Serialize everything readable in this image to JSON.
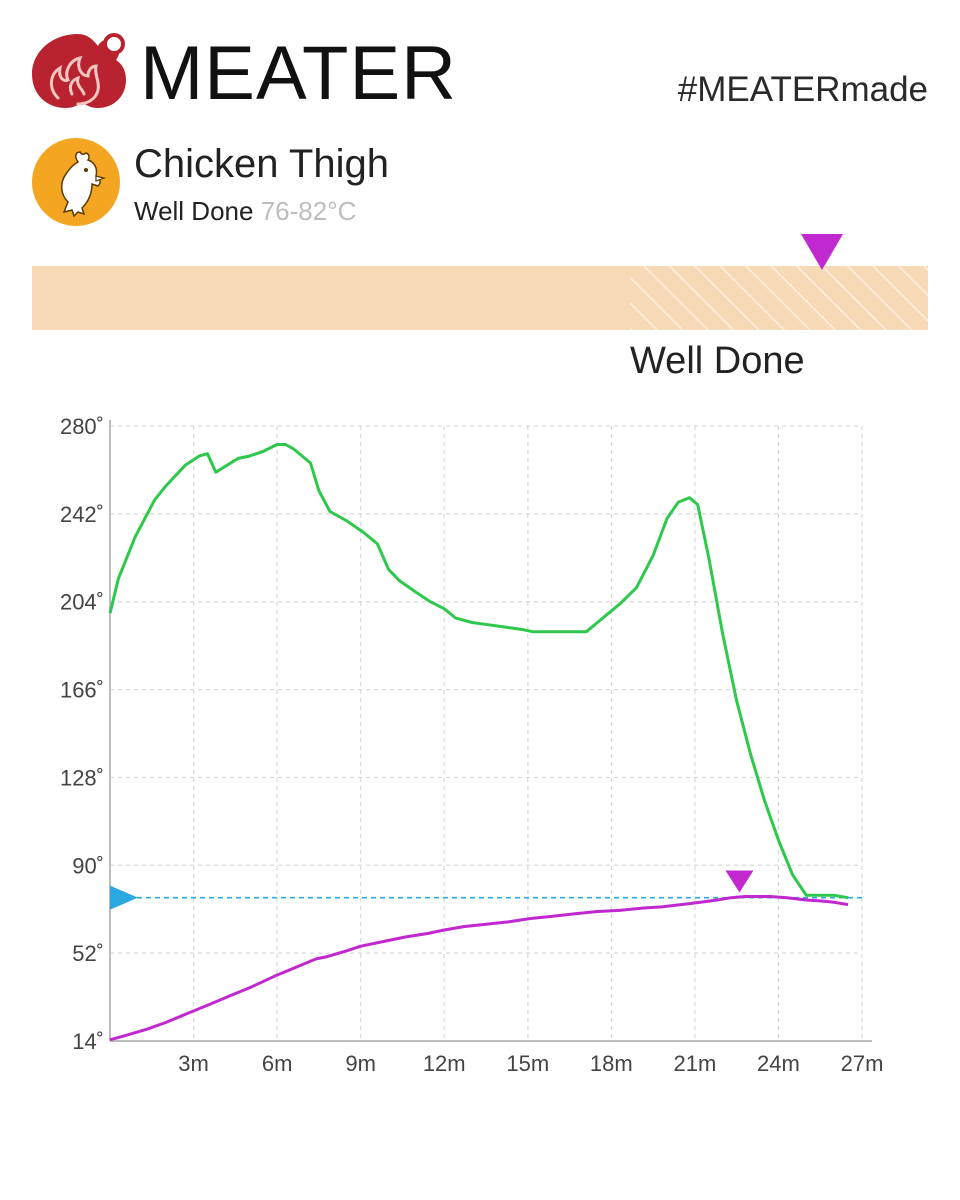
{
  "brand": {
    "name": "MEATER",
    "hashtag": "#MEATERmade",
    "color": "#b8232f"
  },
  "cook": {
    "cut": "Chicken Thigh",
    "doneness": "Well Done",
    "range": "76-82°C",
    "icon": "chicken-icon",
    "icon_color": "#f4a623"
  },
  "progress_bar": {
    "label": "Well Done",
    "colors": {
      "fill": "#f8d9b5",
      "hatch": "#fbe7cf"
    },
    "target_marker_color": "#c228d0"
  },
  "chart_data": {
    "type": "line",
    "x_unit": "minutes",
    "xlim": [
      0,
      27
    ],
    "ylim": [
      14,
      280
    ],
    "x_ticks": [
      "3m",
      "6m",
      "9m",
      "12m",
      "15m",
      "18m",
      "21m",
      "24m",
      "27m"
    ],
    "y_ticks": [
      "14˚",
      "52˚",
      "90˚",
      "128˚",
      "166˚",
      "204˚",
      "242˚",
      "280˚"
    ],
    "grid": true,
    "series": [
      {
        "role": "ambient",
        "color": "#2ec84c",
        "x": [
          0,
          0.3,
          0.9,
          1.6,
          2.0,
          2.7,
          3.2,
          3.5,
          3.8,
          4.2,
          4.6,
          5.0,
          5.5,
          6.0,
          6.3,
          6.6,
          7.2,
          7.5,
          7.9,
          8.5,
          9.1,
          9.6,
          10.0,
          10.4,
          11.0,
          11.5,
          12.0,
          12.4,
          13.0,
          13.6,
          14.2,
          14.8,
          15.2,
          15.6,
          16.0,
          16.6,
          17.1,
          17.5,
          17.9,
          18.3,
          18.9,
          19.5,
          20.0,
          20.4,
          20.8,
          21.1,
          21.5,
          22.0,
          22.5,
          23.0,
          23.5,
          24.0,
          24.5,
          25.0,
          25.5,
          26.0,
          26.5
        ],
        "y": [
          199,
          214,
          232,
          248,
          254,
          263,
          267,
          268,
          260,
          263,
          266,
          267,
          269,
          272,
          272,
          270,
          264,
          252,
          243,
          239,
          234,
          229,
          218,
          213,
          208,
          204,
          201,
          197,
          195,
          194,
          193,
          192,
          191,
          191,
          191,
          191,
          191,
          195,
          199,
          203,
          210,
          224,
          240,
          247,
          249,
          246,
          223,
          190,
          161,
          138,
          118,
          101,
          86,
          77,
          77,
          77,
          76
        ]
      },
      {
        "role": "internal",
        "color": "#c228d0",
        "x": [
          0,
          0.6,
          1.3,
          2.0,
          2.7,
          3.5,
          4.3,
          5.1,
          5.9,
          6.7,
          7.4,
          7.8,
          8.5,
          9.0,
          9.8,
          10.6,
          11.4,
          12.0,
          12.7,
          13.5,
          14.3,
          15.1,
          15.9,
          16.7,
          17.5,
          18.3,
          19.1,
          19.8,
          20.5,
          21.2,
          21.8,
          22.3,
          22.8,
          23.2,
          23.7,
          24.3,
          25.0,
          25.6,
          26.0,
          26.5
        ],
        "y": [
          14.5,
          16.5,
          19,
          22,
          25.5,
          29.5,
          33.5,
          37.5,
          42,
          46,
          49.5,
          50.5,
          53,
          55,
          57,
          59,
          60.5,
          62,
          63.5,
          64.5,
          65.5,
          67,
          68,
          69,
          70,
          70.5,
          71.5,
          72,
          73,
          74,
          75,
          76,
          76.5,
          76.5,
          76.5,
          76,
          75,
          74.5,
          74,
          73
        ]
      }
    ],
    "target_temp": 76,
    "target_line_color": "#2aa8e0",
    "peak_marker": {
      "x": 22.6,
      "y": 76.5,
      "color": "#c228d0"
    }
  }
}
